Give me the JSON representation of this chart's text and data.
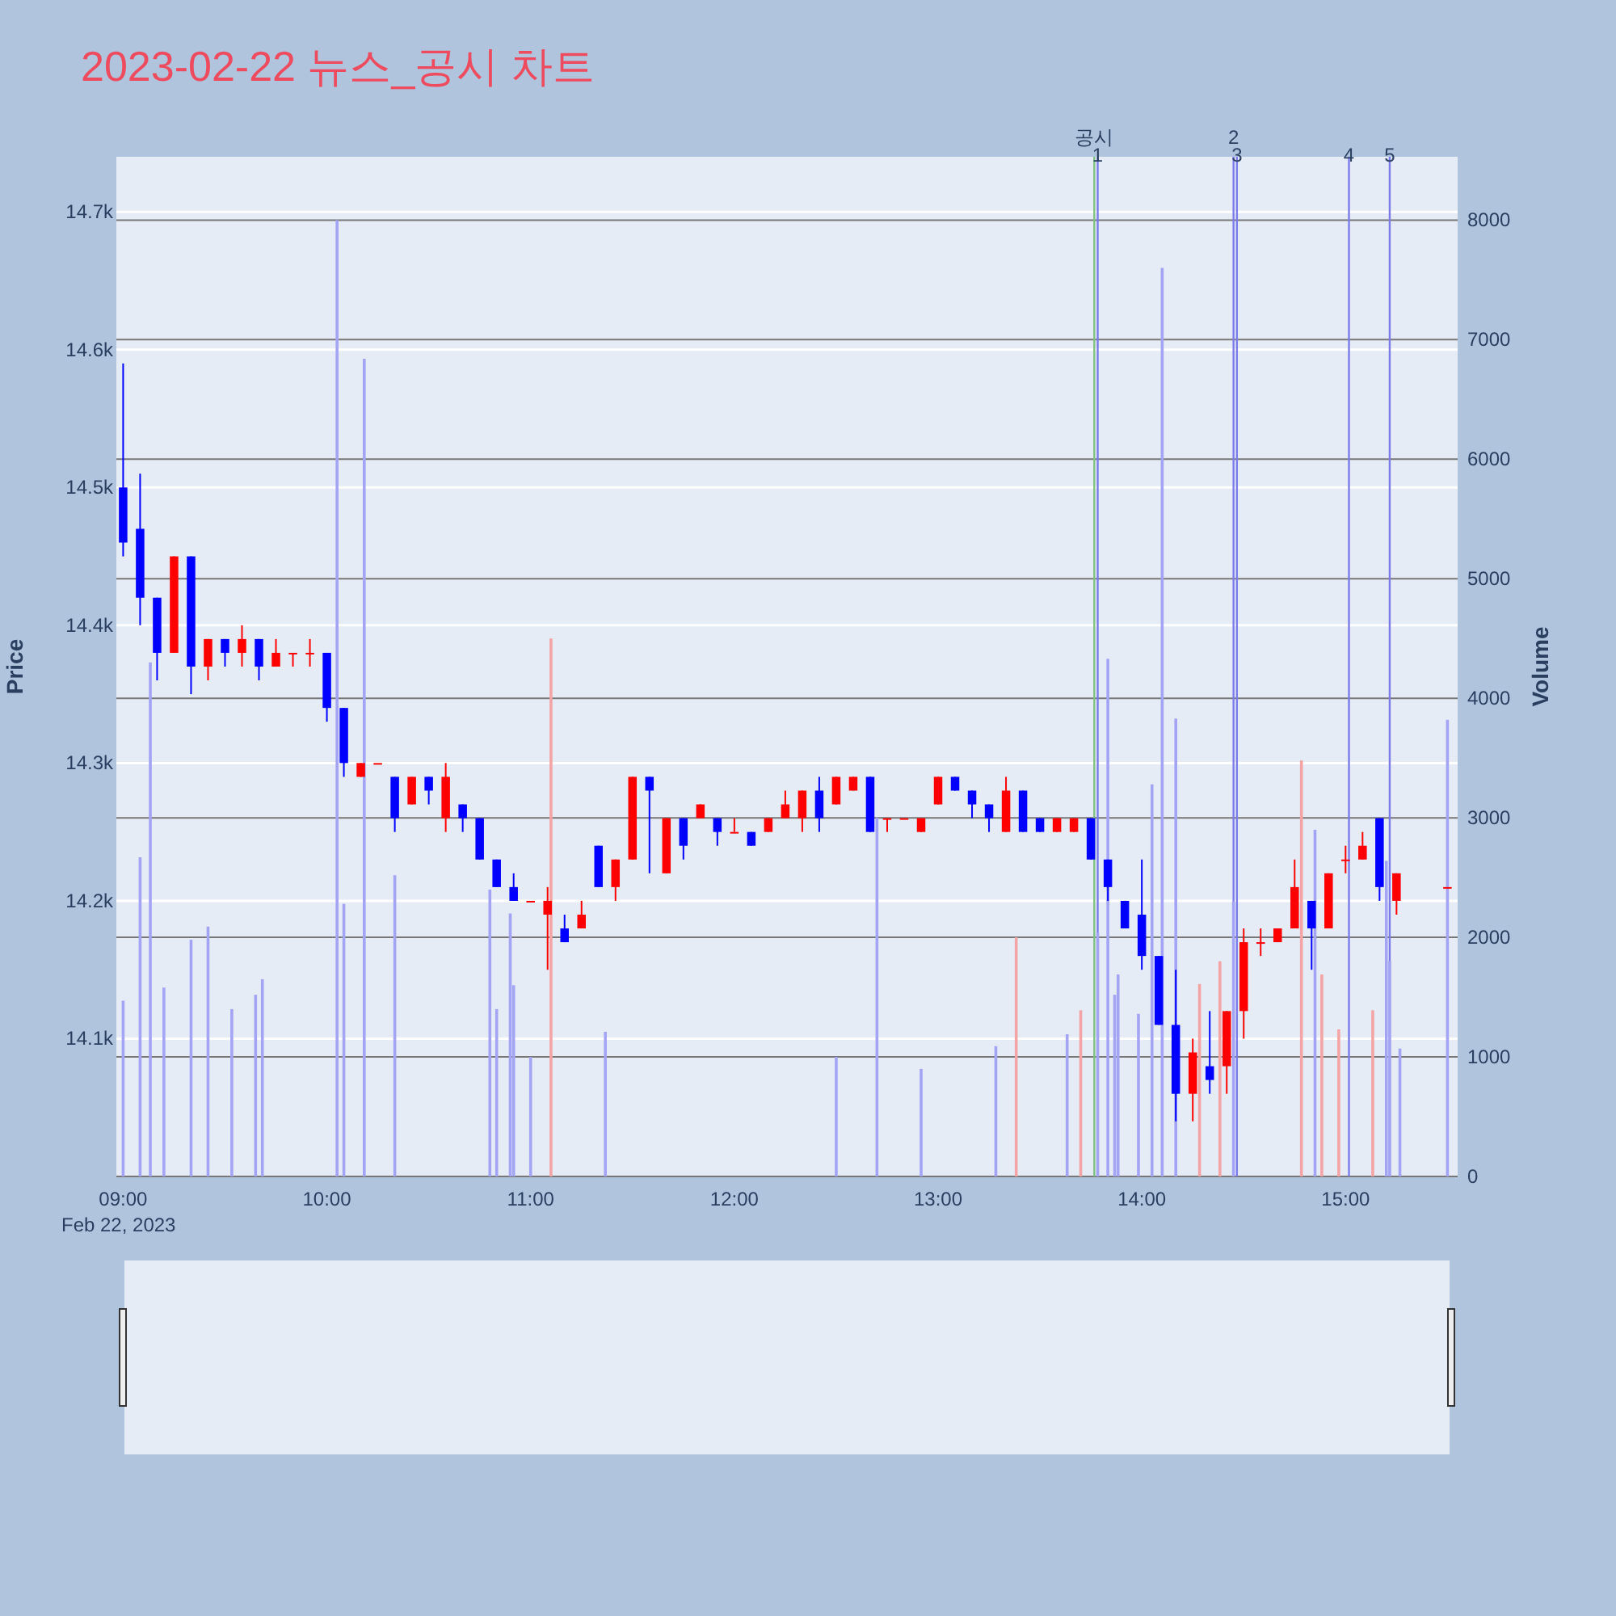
{
  "chart_data": {
    "type": "candlestick",
    "title": "2023-02-22 뉴스_공시 차트",
    "ylabel": "Price",
    "y2label": "Volume",
    "x": [
      "2023-02-22T09:00",
      "2023-02-22T09:05",
      "2023-02-22T09:10",
      "2023-02-22T09:15",
      "2023-02-22T09:20",
      "2023-02-22T09:25",
      "2023-02-22T09:30",
      "2023-02-22T09:35",
      "2023-02-22T09:40",
      "2023-02-22T09:45",
      "2023-02-22T09:50",
      "2023-02-22T09:55",
      "2023-02-22T10:00",
      "2023-02-22T10:05",
      "2023-02-22T10:10",
      "2023-02-22T10:15",
      "2023-02-22T10:20",
      "2023-02-22T10:25",
      "2023-02-22T10:30",
      "2023-02-22T10:35",
      "2023-02-22T10:40",
      "2023-02-22T10:45",
      "2023-02-22T10:50",
      "2023-02-22T10:55",
      "2023-02-22T11:00",
      "2023-02-22T11:05",
      "2023-02-22T11:10",
      "2023-02-22T11:15",
      "2023-02-22T11:20",
      "2023-02-22T11:25",
      "2023-02-22T11:30",
      "2023-02-22T11:35",
      "2023-02-22T11:40",
      "2023-02-22T11:45",
      "2023-02-22T11:50",
      "2023-02-22T11:55",
      "2023-02-22T12:00",
      "2023-02-22T12:05",
      "2023-02-22T12:10",
      "2023-02-22T12:15",
      "2023-02-22T12:20",
      "2023-02-22T12:25",
      "2023-02-22T12:30",
      "2023-02-22T12:35",
      "2023-02-22T12:40",
      "2023-02-22T12:45",
      "2023-02-22T12:50",
      "2023-02-22T12:55",
      "2023-02-22T13:00",
      "2023-02-22T13:05",
      "2023-02-22T13:10",
      "2023-02-22T13:15",
      "2023-02-22T13:20",
      "2023-02-22T13:25",
      "2023-02-22T13:30",
      "2023-02-22T13:35",
      "2023-02-22T13:40",
      "2023-02-22T13:45",
      "2023-02-22T13:50",
      "2023-02-22T13:55",
      "2023-02-22T14:00",
      "2023-02-22T14:05",
      "2023-02-22T14:10",
      "2023-02-22T14:15",
      "2023-02-22T14:20",
      "2023-02-22T14:25",
      "2023-02-22T14:30",
      "2023-02-22T14:35",
      "2023-02-22T14:40",
      "2023-02-22T14:45",
      "2023-02-22T14:50",
      "2023-02-22T14:55",
      "2023-02-22T15:00",
      "2023-02-22T15:05",
      "2023-02-22T15:10",
      "2023-02-22T15:15",
      "2023-02-22T15:30"
    ],
    "ohlc": [
      [
        14500,
        14590,
        14450,
        14460
      ],
      [
        14470,
        14510,
        14400,
        14420
      ],
      [
        14420,
        14420,
        14360,
        14380
      ],
      [
        14380,
        14450,
        14380,
        14450
      ],
      [
        14450,
        14450,
        14350,
        14370
      ],
      [
        14370,
        14390,
        14360,
        14390
      ],
      [
        14390,
        14390,
        14370,
        14380
      ],
      [
        14380,
        14400,
        14370,
        14390
      ],
      [
        14390,
        14390,
        14360,
        14370
      ],
      [
        14370,
        14390,
        14370,
        14380
      ],
      [
        14380,
        14380,
        14370,
        14380
      ],
      [
        14380,
        14390,
        14370,
        14380
      ],
      [
        14380,
        14380,
        14330,
        14340
      ],
      [
        14340,
        14340,
        14290,
        14300
      ],
      [
        14290,
        14300,
        14290,
        14300
      ],
      [
        14300,
        14300,
        14300,
        14300
      ],
      [
        14290,
        14290,
        14250,
        14260
      ],
      [
        14270,
        14290,
        14270,
        14290
      ],
      [
        14290,
        14290,
        14270,
        14280
      ],
      [
        14260,
        14300,
        14250,
        14290
      ],
      [
        14270,
        14270,
        14250,
        14260
      ],
      [
        14260,
        14260,
        14230,
        14230
      ],
      [
        14230,
        14230,
        14210,
        14210
      ],
      [
        14210,
        14220,
        14200,
        14200
      ],
      [
        14200,
        14200,
        14200,
        14200
      ],
      [
        14190,
        14210,
        14150,
        14200
      ],
      [
        14180,
        14190,
        14170,
        14170
      ],
      [
        14180,
        14200,
        14180,
        14190
      ],
      [
        14240,
        14240,
        14210,
        14210
      ],
      [
        14210,
        14230,
        14200,
        14230
      ],
      [
        14230,
        14290,
        14230,
        14290
      ],
      [
        14290,
        14290,
        14220,
        14280
      ],
      [
        14220,
        14260,
        14220,
        14260
      ],
      [
        14260,
        14260,
        14230,
        14240
      ],
      [
        14260,
        14270,
        14260,
        14270
      ],
      [
        14260,
        14260,
        14240,
        14250
      ],
      [
        14250,
        14260,
        14250,
        14250
      ],
      [
        14250,
        14250,
        14240,
        14240
      ],
      [
        14250,
        14260,
        14250,
        14260
      ],
      [
        14260,
        14280,
        14260,
        14270
      ],
      [
        14260,
        14280,
        14250,
        14280
      ],
      [
        14280,
        14290,
        14250,
        14260
      ],
      [
        14270,
        14290,
        14270,
        14290
      ],
      [
        14280,
        14290,
        14280,
        14290
      ],
      [
        14290,
        14290,
        14250,
        14250
      ],
      [
        14260,
        14260,
        14250,
        14260
      ],
      [
        14260,
        14260,
        14260,
        14260
      ],
      [
        14250,
        14260,
        14250,
        14260
      ],
      [
        14270,
        14290,
        14270,
        14290
      ],
      [
        14290,
        14290,
        14280,
        14280
      ],
      [
        14280,
        14280,
        14260,
        14270
      ],
      [
        14270,
        14270,
        14250,
        14260
      ],
      [
        14250,
        14290,
        14250,
        14280
      ],
      [
        14280,
        14280,
        14250,
        14250
      ],
      [
        14260,
        14260,
        14250,
        14250
      ],
      [
        14250,
        14260,
        14250,
        14260
      ],
      [
        14250,
        14260,
        14250,
        14260
      ],
      [
        14260,
        14260,
        14230,
        14230
      ],
      [
        14230,
        14230,
        14200,
        14210
      ],
      [
        14200,
        14200,
        14180,
        14180
      ],
      [
        14190,
        14230,
        14150,
        14160
      ],
      [
        14160,
        14160,
        14110,
        14110
      ],
      [
        14110,
        14150,
        14040,
        14060
      ],
      [
        14060,
        14100,
        14040,
        14090
      ],
      [
        14080,
        14120,
        14060,
        14070
      ],
      [
        14080,
        14120,
        14060,
        14120
      ],
      [
        14120,
        14180,
        14100,
        14170
      ],
      [
        14170,
        14180,
        14160,
        14170
      ],
      [
        14170,
        14180,
        14170,
        14180
      ],
      [
        14180,
        14230,
        14180,
        14210
      ],
      [
        14200,
        14200,
        14150,
        14180
      ],
      [
        14180,
        14220,
        14180,
        14220
      ],
      [
        14230,
        14240,
        14220,
        14230
      ],
      [
        14230,
        14250,
        14230,
        14240
      ],
      [
        14260,
        14260,
        14200,
        14210
      ],
      [
        14200,
        14220,
        14190,
        14220
      ],
      [
        14210,
        14210,
        14210,
        14210
      ]
    ],
    "colors": [
      "#0000ff",
      "#0000ff",
      "#0000ff",
      "#ff0000",
      "#0000ff",
      "#ff0000",
      "#0000ff",
      "#ff0000",
      "#0000ff",
      "#ff0000",
      "#ff0000",
      "#ff0000",
      "#0000ff",
      "#0000ff",
      "#ff0000",
      "#ff0000",
      "#0000ff",
      "#ff0000",
      "#0000ff",
      "#ff0000",
      "#0000ff",
      "#0000ff",
      "#0000ff",
      "#0000ff",
      "#ff0000",
      "#ff0000",
      "#0000ff",
      "#ff0000",
      "#0000ff",
      "#ff0000",
      "#ff0000",
      "#0000ff",
      "#ff0000",
      "#0000ff",
      "#ff0000",
      "#0000ff",
      "#ff0000",
      "#0000ff",
      "#ff0000",
      "#ff0000",
      "#ff0000",
      "#0000ff",
      "#ff0000",
      "#ff0000",
      "#0000ff",
      "#ff0000",
      "#ff0000",
      "#ff0000",
      "#ff0000",
      "#0000ff",
      "#0000ff",
      "#0000ff",
      "#ff0000",
      "#0000ff",
      "#0000ff",
      "#ff0000",
      "#ff0000",
      "#0000ff",
      "#0000ff",
      "#0000ff",
      "#0000ff",
      "#0000ff",
      "#0000ff",
      "#ff0000",
      "#0000ff",
      "#ff0000",
      "#ff0000",
      "#ff0000",
      "#ff0000",
      "#ff0000",
      "#0000ff",
      "#ff0000",
      "#ff0000",
      "#ff0000",
      "#0000ff",
      "#ff0000",
      "#ff0000"
    ],
    "series": [
      {
        "type": "bar",
        "axis": "y2",
        "color": "#a4a4f4",
        "x": [
          "2023-02-22T09:00",
          "2023-02-22T09:05",
          "2023-02-22T09:08",
          "2023-02-22T09:12",
          "2023-02-22T09:20",
          "2023-02-22T09:25",
          "2023-02-22T09:32",
          "2023-02-22T09:39",
          "2023-02-22T09:41",
          "2023-02-22T10:03",
          "2023-02-22T10:05",
          "2023-02-22T10:11",
          "2023-02-22T10:20",
          "2023-02-22T10:48",
          "2023-02-22T10:50",
          "2023-02-22T10:54",
          "2023-02-22T10:55",
          "2023-02-22T11:00",
          "2023-02-22T11:22",
          "2023-02-22T12:30",
          "2023-02-22T12:42",
          "2023-02-22T12:55",
          "2023-02-22T13:17",
          "2023-02-22T13:38",
          "2023-02-22T13:47",
          "2023-02-22T13:50",
          "2023-02-22T13:52",
          "2023-02-22T13:53",
          "2023-02-22T13:59",
          "2023-02-22T14:03",
          "2023-02-22T14:06",
          "2023-02-22T14:10",
          "2023-02-22T14:27",
          "2023-02-22T14:51",
          "2023-02-22T15:12",
          "2023-02-22T15:13",
          "2023-02-22T15:16",
          "2023-02-22T15:30"
        ],
        "values": [
          1470,
          2670,
          4300,
          1580,
          1980,
          2090,
          1400,
          1520,
          1650,
          8000,
          2280,
          6840,
          2520,
          2400,
          1400,
          2200,
          1600,
          1000,
          1210,
          1000,
          3000,
          900,
          1090,
          1190,
          2040,
          4330,
          1520,
          1690,
          1360,
          3280,
          7600,
          3830,
          2300,
          2900,
          2640,
          1800,
          1070,
          3820
        ]
      },
      {
        "type": "bar",
        "axis": "y2",
        "color": "#f4a4a4",
        "x": [
          "2023-02-22T11:06",
          "2023-02-22T13:23",
          "2023-02-22T13:42",
          "2023-02-22T14:17",
          "2023-02-22T14:23",
          "2023-02-22T14:47",
          "2023-02-22T14:53",
          "2023-02-22T14:58",
          "2023-02-22T15:08"
        ],
        "values": [
          4500,
          2000,
          1390,
          1610,
          1800,
          3480,
          1690,
          1230,
          1390
        ]
      }
    ],
    "xlim": [
      "2023-02-22T08:58",
      "2023-02-22T15:33"
    ],
    "xticks": [
      {
        "value": "2023-02-22T09:00",
        "label": "09:00\nFeb 22, 2023"
      },
      {
        "value": "2023-02-22T10:00",
        "label": "10:00"
      },
      {
        "value": "2023-02-22T11:00",
        "label": "11:00"
      },
      {
        "value": "2023-02-22T12:00",
        "label": "12:00"
      },
      {
        "value": "2023-02-22T13:00",
        "label": "13:00"
      },
      {
        "value": "2023-02-22T14:00",
        "label": "14:00"
      },
      {
        "value": "2023-02-22T15:00",
        "label": "15:00"
      }
    ],
    "ylim": [
      14000,
      14740
    ],
    "yticks": [
      {
        "value": 14100,
        "label": "14.1k"
      },
      {
        "value": 14200,
        "label": "14.2k"
      },
      {
        "value": 14300,
        "label": "14.3k"
      },
      {
        "value": 14400,
        "label": "14.4k"
      },
      {
        "value": 14500,
        "label": "14.5k"
      },
      {
        "value": 14600,
        "label": "14.6k"
      },
      {
        "value": 14700,
        "label": "14.7k"
      }
    ],
    "y2lim": [
      0,
      8530
    ],
    "y2ticks": [
      0,
      1000,
      2000,
      3000,
      4000,
      5000,
      6000,
      7000,
      8000
    ],
    "grid": "y",
    "ref_lines": [
      {
        "axis": "x",
        "value": "2023-02-22T13:46",
        "label": "공시",
        "color": "#7fbf7f"
      },
      {
        "axis": "x",
        "value": "2023-02-22T13:47",
        "label": "1",
        "color": "#7b7bea"
      },
      {
        "axis": "x",
        "value": "2023-02-22T14:27",
        "label": "2",
        "color": "#7b7bea"
      },
      {
        "axis": "x",
        "value": "2023-02-22T14:28",
        "label": "3",
        "color": "#7b7bea"
      },
      {
        "axis": "x",
        "value": "2023-02-22T15:01",
        "label": "4",
        "color": "#7b7bea"
      },
      {
        "axis": "x",
        "value": "2023-02-22T15:13",
        "label": "5",
        "color": "#7b7bea"
      }
    ]
  }
}
